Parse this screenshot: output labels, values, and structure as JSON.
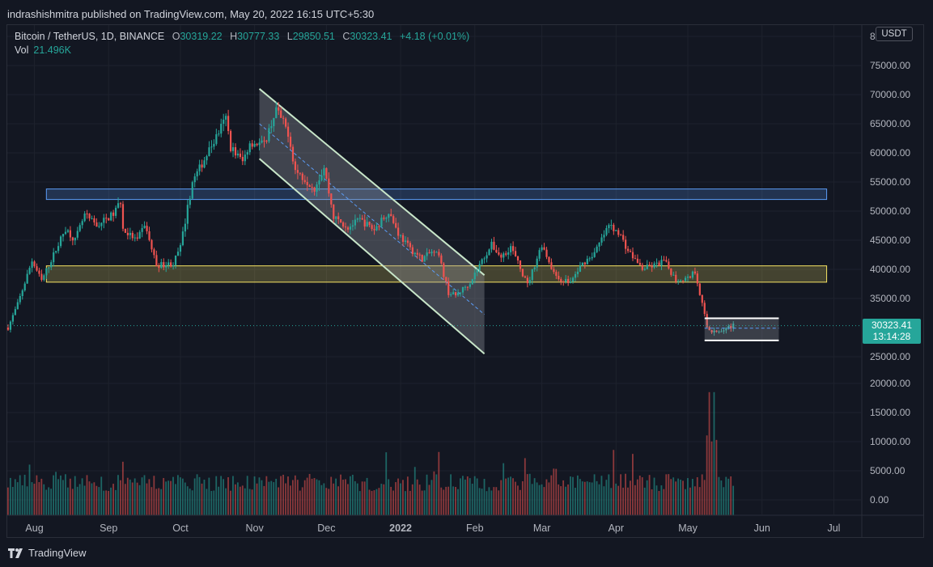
{
  "header": {
    "published": "indrashishmitra published on TradingView.com, May 20, 2022 16:15 UTC+5:30"
  },
  "legend": {
    "symbol": "Bitcoin / TetherUS, 1D, BINANCE",
    "open_key": "O",
    "open": "30319.22",
    "high_key": "H",
    "high": "30777.33",
    "low_key": "L",
    "low": "29850.51",
    "close_key": "C",
    "close": "30323.41",
    "change": "+4.18 (+0.01%)",
    "vol_label": "Vol",
    "vol_value": "21.496K"
  },
  "currency_badge": "USDT",
  "last_price": {
    "price": "30323.41",
    "countdown": "13:14:28"
  },
  "footer": {
    "brand": "TradingView"
  },
  "colors": {
    "bull": "#26a69a",
    "bear": "#ef5350",
    "background": "#131722",
    "grid": "#1e222d"
  },
  "chart_data": {
    "type": "candlestick",
    "title": "",
    "y_axis": {
      "ticks": [
        "80000.00",
        "75000.00",
        "70000.00",
        "65000.00",
        "60000.00",
        "55000.00",
        "50000.00",
        "45000.00",
        "40000.00",
        "35000.00",
        "25000.00",
        "20000.00",
        "15000.00",
        "10000.00",
        "5000.00",
        "0.00"
      ],
      "top_tick_visible": "8",
      "range": [
        0,
        80000
      ]
    },
    "x_axis": {
      "ticks": [
        {
          "label": "Aug",
          "date": "2021-08-01"
        },
        {
          "label": "Sep",
          "date": "2021-09-01"
        },
        {
          "label": "Oct",
          "date": "2021-10-01"
        },
        {
          "label": "Nov",
          "date": "2021-11-01"
        },
        {
          "label": "Dec",
          "date": "2021-12-01"
        },
        {
          "label": "2022",
          "date": "2022-01-01",
          "bold": true
        },
        {
          "label": "Feb",
          "date": "2022-02-01"
        },
        {
          "label": "Mar",
          "date": "2022-03-01"
        },
        {
          "label": "Apr",
          "date": "2022-04-01"
        },
        {
          "label": "May",
          "date": "2022-05-01"
        },
        {
          "label": "Jun",
          "date": "2022-06-01"
        },
        {
          "label": "Jul",
          "date": "2022-07-01"
        }
      ],
      "range": [
        "2021-07-21",
        "2022-07-12"
      ]
    },
    "price_path": [
      [
        "2021-07-21",
        30000
      ],
      [
        "2021-07-25",
        34000
      ],
      [
        "2021-07-31",
        41500
      ],
      [
        "2021-08-04",
        38000
      ],
      [
        "2021-08-14",
        47000
      ],
      [
        "2021-08-18",
        45000
      ],
      [
        "2021-08-22",
        49300
      ],
      [
        "2021-08-27",
        47500
      ],
      [
        "2021-09-03",
        49500
      ],
      [
        "2021-09-06",
        51700
      ],
      [
        "2021-09-07",
        46800
      ],
      [
        "2021-09-13",
        44900
      ],
      [
        "2021-09-16",
        47800
      ],
      [
        "2021-09-21",
        40700
      ],
      [
        "2021-09-28",
        41000
      ],
      [
        "2021-10-01",
        43800
      ],
      [
        "2021-10-06",
        55000
      ],
      [
        "2021-10-15",
        62000
      ],
      [
        "2021-10-20",
        66000
      ],
      [
        "2021-10-22",
        61000
      ],
      [
        "2021-10-27",
        58500
      ],
      [
        "2021-10-30",
        61800
      ],
      [
        "2021-11-05",
        61500
      ],
      [
        "2021-11-10",
        67500
      ],
      [
        "2021-11-15",
        63500
      ],
      [
        "2021-11-18",
        57000
      ],
      [
        "2021-11-26",
        54000
      ],
      [
        "2021-11-30",
        57500
      ],
      [
        "2021-12-04",
        49000
      ],
      [
        "2021-12-10",
        47200
      ],
      [
        "2021-12-15",
        48500
      ],
      [
        "2021-12-21",
        46800
      ],
      [
        "2021-12-27",
        50000
      ],
      [
        "2021-12-31",
        46200
      ],
      [
        "2022-01-05",
        43500
      ],
      [
        "2022-01-10",
        41800
      ],
      [
        "2022-01-14",
        43000
      ],
      [
        "2022-01-17",
        42200
      ],
      [
        "2022-01-21",
        36000
      ],
      [
        "2022-01-24",
        35500
      ],
      [
        "2022-01-30",
        37800
      ],
      [
        "2022-02-04",
        41500
      ],
      [
        "2022-02-08",
        44200
      ],
      [
        "2022-02-12",
        42100
      ],
      [
        "2022-02-16",
        43900
      ],
      [
        "2022-02-23",
        37300
      ],
      [
        "2022-03-01",
        44300
      ],
      [
        "2022-03-07",
        38500
      ],
      [
        "2022-03-13",
        37800
      ],
      [
        "2022-03-18",
        41000
      ],
      [
        "2022-03-23",
        42800
      ],
      [
        "2022-03-29",
        47500
      ],
      [
        "2022-04-02",
        46500
      ],
      [
        "2022-04-06",
        43200
      ],
      [
        "2022-04-12",
        40100
      ],
      [
        "2022-04-18",
        40800
      ],
      [
        "2022-04-21",
        41500
      ],
      [
        "2022-04-26",
        38200
      ],
      [
        "2022-05-01",
        38500
      ],
      [
        "2022-05-04",
        39700
      ],
      [
        "2022-05-06",
        36000
      ],
      [
        "2022-05-09",
        30100
      ],
      [
        "2022-05-11",
        29000
      ],
      [
        "2022-05-13",
        29300
      ],
      [
        "2022-05-16",
        29900
      ],
      [
        "2022-05-20",
        30323
      ]
    ],
    "drawings": {
      "descending_channel": {
        "upper": [
          [
            "2021-11-03",
            71000
          ],
          [
            "2022-02-05",
            39000
          ]
        ],
        "lower": [
          [
            "2021-11-03",
            59000
          ],
          [
            "2022-02-05",
            25500
          ]
        ],
        "midline_dashed": true
      },
      "resistance_zone": {
        "from": "2021-08-06",
        "to": "2022-06-28",
        "y_low": 52000,
        "y_high": 53800,
        "color": "#5b9cf6"
      },
      "support_zone": {
        "from": "2021-08-06",
        "to": "2022-06-28",
        "y_low": 37800,
        "y_high": 40600,
        "color": "#f7e463"
      },
      "range_box": {
        "from": "2022-05-08",
        "to": "2022-06-08",
        "y_low": 27800,
        "y_high": 31600
      }
    },
    "volume": {
      "max_visible": 18500,
      "spike_dates": [
        "2022-05-10",
        "2022-05-12"
      ]
    }
  }
}
